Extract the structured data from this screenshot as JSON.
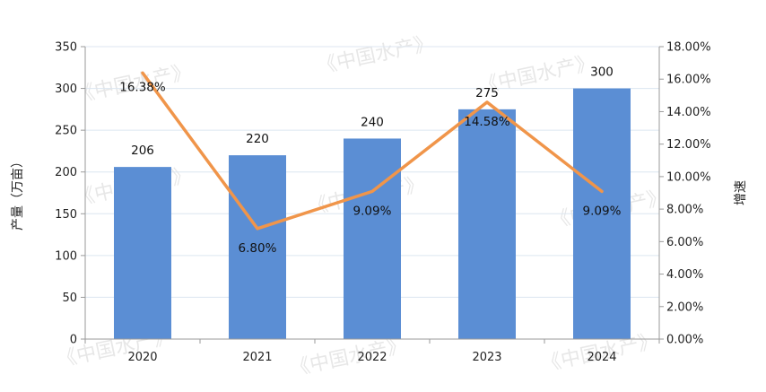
{
  "chart_data": {
    "type": "bar+line",
    "categories": [
      "2020",
      "2021",
      "2022",
      "2023",
      "2024"
    ],
    "series": [
      {
        "type": "bar",
        "axis": "left",
        "values": [
          206,
          220,
          240,
          275,
          300
        ],
        "labels": [
          "206",
          "220",
          "240",
          "275",
          "300"
        ]
      },
      {
        "type": "line",
        "axis": "right",
        "values": [
          16.38,
          6.8,
          9.09,
          14.58,
          9.09
        ],
        "labels": [
          "16.38%",
          "6.80%",
          "9.09%",
          "14.58%",
          "9.09%"
        ]
      }
    ],
    "ylabel_left": "产量（万亩）",
    "ylabel_right": "增速",
    "ylim_left": [
      0,
      350
    ],
    "yticks_left": [
      "0",
      "50",
      "100",
      "150",
      "200",
      "250",
      "300",
      "350"
    ],
    "ylim_right": [
      0,
      18
    ],
    "yticks_right": [
      "0.00%",
      "2.00%",
      "4.00%",
      "6.00%",
      "8.00%",
      "10.00%",
      "12.00%",
      "14.00%",
      "16.00%",
      "18.00%"
    ],
    "grid": true,
    "legend": "none",
    "watermark": "《中国水产》",
    "colors": {
      "bar": "#5B8ED4",
      "line": "#F0954A",
      "grid": "#DCE6F0",
      "axis": "#9A9A9A"
    }
  }
}
